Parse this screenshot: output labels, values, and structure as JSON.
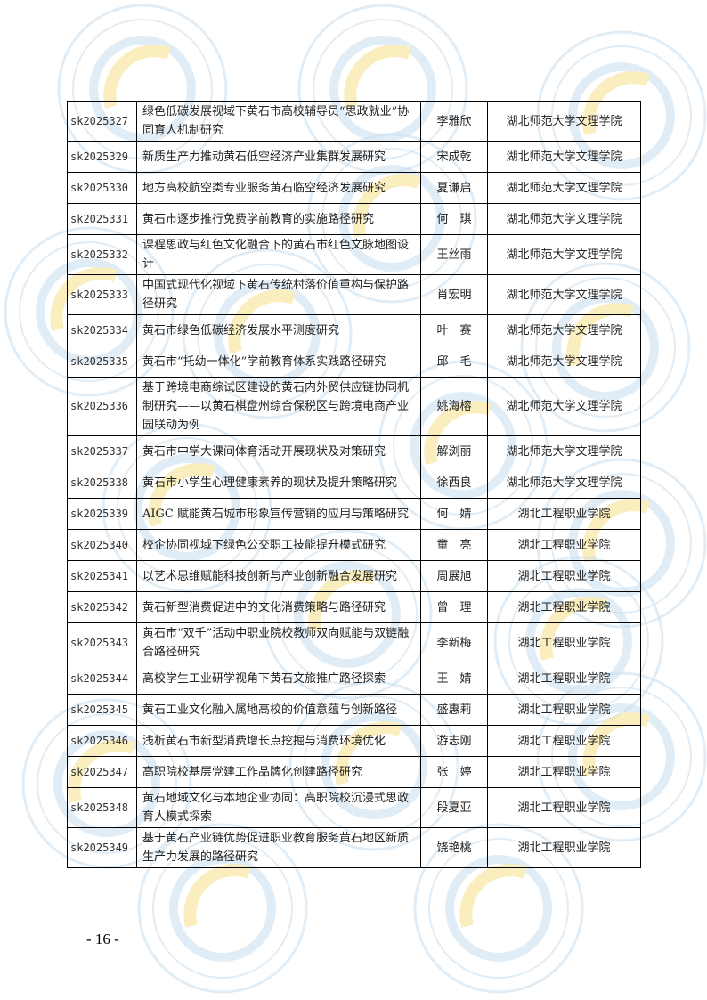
{
  "table": {
    "rows": [
      {
        "code": "sk2025327",
        "title": "绿色低碳发展视域下黄石市高校辅导员“思政就业”协同育人机制研究",
        "person": "李雅欣",
        "org": "湖北师范大学文理学院"
      },
      {
        "code": "sk2025329",
        "title": "新质生产力推动黄石低空经济产业集群发展研究",
        "person": "宋成乾",
        "org": "湖北师范大学文理学院"
      },
      {
        "code": "sk2025330",
        "title": "地方高校航空类专业服务黄石临空经济发展研究",
        "person": "夏谦启",
        "org": "湖北师范大学文理学院"
      },
      {
        "code": "sk2025331",
        "title": "黄石市逐步推行免费学前教育的实施路径研究",
        "person": "何　琪",
        "org": "湖北师范大学文理学院"
      },
      {
        "code": "sk2025332",
        "title": "课程思政与红色文化融合下的黄石市红色文脉地图设计",
        "person": "王丝雨",
        "org": "湖北师范大学文理学院"
      },
      {
        "code": "sk2025333",
        "title": "中国式现代化视域下黄石传统村落价值重构与保护路径研究",
        "person": "肖宏明",
        "org": "湖北师范大学文理学院"
      },
      {
        "code": "sk2025334",
        "title": "黄石市绿色低碳经济发展水平测度研究",
        "person": "叶　赛",
        "org": "湖北师范大学文理学院"
      },
      {
        "code": "sk2025335",
        "title": "黄石市“托幼一体化”学前教育体系实践路径研究",
        "person": "邱　毛",
        "org": "湖北师范大学文理学院"
      },
      {
        "code": "sk2025336",
        "title": "基于跨境电商综试区建设的黄石内外贸供应链协同机制研究——以黄石棋盘州综合保税区与跨境电商产业园联动为例",
        "person": "姚海榕",
        "org": "湖北师范大学文理学院"
      },
      {
        "code": "sk2025337",
        "title": "黄石市中学大课间体育活动开展现状及对策研究",
        "person": "解浏丽",
        "org": "湖北师范大学文理学院"
      },
      {
        "code": "sk2025338",
        "title": "黄石市小学生心理健康素养的现状及提升策略研究",
        "person": "徐西良",
        "org": "湖北师范大学文理学院"
      },
      {
        "code": "sk2025339",
        "title": "AIGC 赋能黄石城市形象宣传营销的应用与策略研究",
        "person": "何　婧",
        "org": "湖北工程职业学院"
      },
      {
        "code": "sk2025340",
        "title": "校企协同视域下绿色公交职工技能提升模式研究",
        "person": "童　亮",
        "org": "湖北工程职业学院"
      },
      {
        "code": "sk2025341",
        "title": "以艺术思维赋能科技创新与产业创新融合发展研究",
        "person": "周展旭",
        "org": "湖北工程职业学院"
      },
      {
        "code": "sk2025342",
        "title": "黄石新型消费促进中的文化消费策略与路径研究",
        "person": "曾　理",
        "org": "湖北工程职业学院"
      },
      {
        "code": "sk2025343",
        "title": "黄石市“双千”活动中职业院校教师双向赋能与双链融合路径研究",
        "person": "李新梅",
        "org": "湖北工程职业学院"
      },
      {
        "code": "sk2025344",
        "title": "高校学生工业研学视角下黄石文旅推广路径探索",
        "person": "王　婧",
        "org": "湖北工程职业学院"
      },
      {
        "code": "sk2025345",
        "title": "黄石工业文化融入属地高校的价值意蕴与创新路径",
        "person": "盛惠莉",
        "org": "湖北工程职业学院"
      },
      {
        "code": "sk2025346",
        "title": "浅析黄石市新型消费增长点挖掘与消费环境优化",
        "person": "游志刚",
        "org": "湖北工程职业学院"
      },
      {
        "code": "sk2025347",
        "title": "高职院校基层党建工作品牌化创建路径研究",
        "person": "张　婷",
        "org": "湖北工程职业学院"
      },
      {
        "code": "sk2025348",
        "title": "黄石地域文化与本地企业协同：高职院校沉浸式思政育人模式探索",
        "person": "段夏亚",
        "org": "湖北工程职业学院"
      },
      {
        "code": "sk2025349",
        "title": "基于黄石产业链优势促进职业教育服务黄石地区新质生产力发展的路径研究",
        "person": "饶艳桃",
        "org": "湖北工程职业学院"
      }
    ]
  },
  "footer": {
    "page_number": "- 16 -"
  },
  "watermark": {
    "colors": {
      "ring": "#c9dff0",
      "arc": "#f6e08a"
    }
  }
}
